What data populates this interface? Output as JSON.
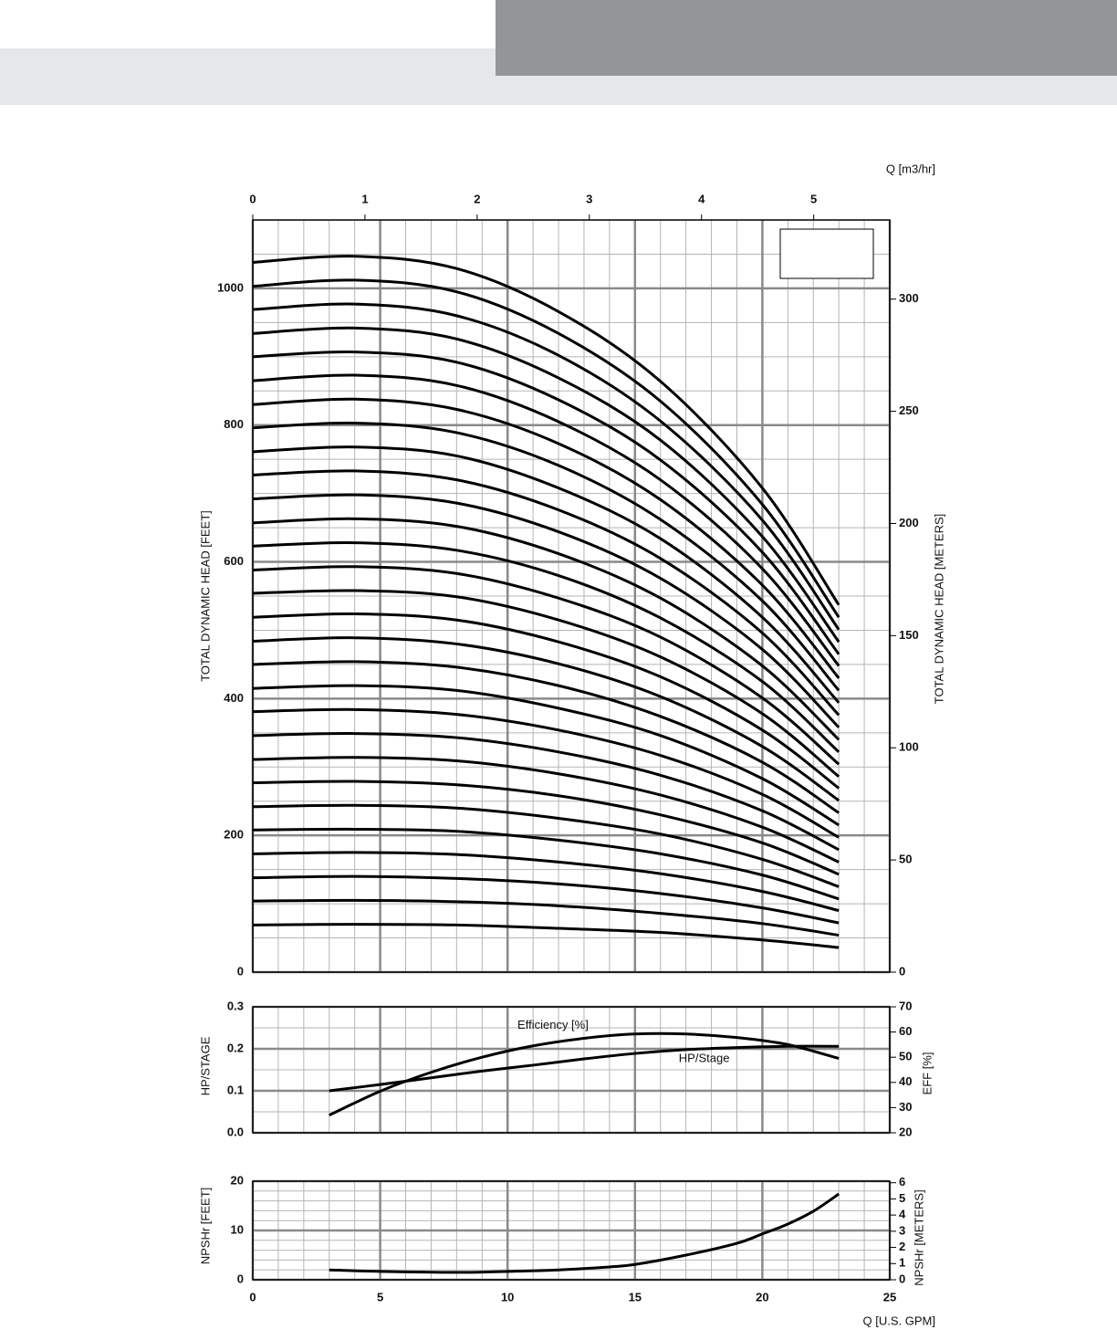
{
  "chart_data": [
    {
      "type": "line",
      "color": "#000000",
      "grid": true,
      "x2_title": "Q [m3/hr]",
      "ytitle": "TOTAL DYNAMIC HEAD [FEET]",
      "y2title": "TOTAL DYNAMIC HEAD [METERS]",
      "xlim": [
        0,
        25
      ],
      "xgrid": [
        0,
        5,
        10,
        15,
        20,
        25
      ],
      "xminor": [
        1,
        2,
        3,
        4,
        6,
        7,
        8,
        9,
        11,
        12,
        13,
        14,
        16,
        17,
        18,
        19,
        21,
        22,
        23,
        24
      ],
      "x2lim": [
        0,
        5.678
      ],
      "x2ticks": [
        0,
        1,
        2,
        3,
        4,
        5
      ],
      "ylim": [
        0,
        1100
      ],
      "yticks": [
        0,
        200,
        400,
        600,
        800,
        1000
      ],
      "yminor": [
        50,
        100,
        150,
        250,
        300,
        350,
        450,
        500,
        550,
        650,
        700,
        750,
        850,
        900,
        950,
        1050
      ],
      "y2lim": [
        0,
        335.28
      ],
      "y2ticks": [
        0,
        50,
        100,
        150,
        200,
        250,
        300
      ],
      "x": [
        0,
        4,
        8,
        12,
        16,
        20,
        23
      ],
      "series": [
        {
          "values": [
            69,
            70,
            69,
            64,
            58,
            47,
            36
          ]
        },
        {
          "values": [
            104,
            105,
            103,
            97,
            86,
            71,
            54
          ]
        },
        {
          "values": [
            138,
            140,
            137,
            129,
            115,
            94,
            72
          ]
        },
        {
          "values": [
            173,
            175,
            172,
            161,
            144,
            118,
            90
          ]
        },
        {
          "values": [
            208,
            209,
            206,
            193,
            173,
            142,
            107
          ]
        },
        {
          "values": [
            242,
            244,
            240,
            225,
            202,
            165,
            125
          ]
        },
        {
          "values": [
            277,
            279,
            274,
            258,
            230,
            189,
            143
          ]
        },
        {
          "values": [
            311,
            314,
            309,
            290,
            259,
            212,
            161
          ]
        },
        {
          "values": [
            346,
            349,
            343,
            322,
            288,
            236,
            179
          ]
        },
        {
          "values": [
            381,
            384,
            377,
            354,
            317,
            260,
            197
          ]
        },
        {
          "values": [
            415,
            419,
            412,
            386,
            346,
            283,
            215
          ]
        },
        {
          "values": [
            450,
            454,
            446,
            419,
            374,
            307,
            233
          ]
        },
        {
          "values": [
            484,
            489,
            480,
            451,
            403,
            330,
            251
          ]
        },
        {
          "values": [
            519,
            524,
            515,
            483,
            432,
            354,
            269
          ]
        },
        {
          "values": [
            554,
            558,
            549,
            515,
            461,
            378,
            286
          ]
        },
        {
          "values": [
            588,
            593,
            583,
            547,
            490,
            401,
            304
          ]
        },
        {
          "values": [
            623,
            628,
            617,
            580,
            518,
            425,
            322
          ]
        },
        {
          "values": [
            657,
            663,
            652,
            612,
            547,
            448,
            340
          ]
        },
        {
          "values": [
            692,
            698,
            686,
            644,
            576,
            472,
            358
          ]
        },
        {
          "values": [
            727,
            733,
            720,
            676,
            605,
            496,
            376
          ]
        },
        {
          "values": [
            761,
            768,
            755,
            708,
            634,
            519,
            394
          ]
        },
        {
          "values": [
            796,
            803,
            789,
            741,
            662,
            543,
            412
          ]
        },
        {
          "values": [
            830,
            838,
            823,
            773,
            691,
            566,
            430
          ]
        },
        {
          "values": [
            865,
            873,
            858,
            805,
            720,
            590,
            448
          ]
        },
        {
          "values": [
            900,
            907,
            892,
            837,
            749,
            614,
            465
          ]
        },
        {
          "values": [
            934,
            942,
            926,
            869,
            778,
            637,
            483
          ]
        },
        {
          "values": [
            969,
            977,
            960,
            902,
            806,
            661,
            501
          ]
        },
        {
          "values": [
            1003,
            1012,
            995,
            934,
            835,
            684,
            519
          ]
        },
        {
          "values": [
            1038,
            1047,
            1029,
            966,
            864,
            708,
            537
          ]
        }
      ]
    },
    {
      "type": "line",
      "color": "#000000",
      "grid": true,
      "ytitle": "HP/STAGE",
      "y2title": "EFF [%]",
      "xlim": [
        0,
        25
      ],
      "xgrid": [
        0,
        5,
        10,
        15,
        20,
        25
      ],
      "xminor": [
        1,
        2,
        3,
        4,
        6,
        7,
        8,
        9,
        11,
        12,
        13,
        14,
        16,
        17,
        18,
        19,
        21,
        22,
        23,
        24
      ],
      "ylim": [
        0,
        0.3
      ],
      "yticks": [
        {
          "value": 0,
          "label": "0.0"
        },
        0.1,
        0.2,
        0.3
      ],
      "yminor": [
        0.05,
        0.15,
        0.25
      ],
      "y2lim": [
        20,
        70
      ],
      "y2ticks": [
        20,
        30,
        40,
        50,
        60,
        70
      ],
      "x": [
        3,
        5,
        7,
        9,
        11,
        13,
        15,
        17,
        19,
        21,
        23
      ],
      "series": [
        {
          "name": "HP/Stage",
          "values": [
            0.1,
            0.115,
            0.131,
            0.147,
            0.161,
            0.176,
            0.189,
            0.198,
            0.203,
            0.206,
            0.206
          ]
        },
        {
          "name": "Efficiency [%]",
          "axis": "y2",
          "values": [
            27,
            36.5,
            44,
            50,
            54.5,
            57.5,
            59.2,
            59.2,
            57.8,
            55,
            49.5
          ]
        }
      ]
    },
    {
      "type": "line",
      "color": "#000000",
      "grid": true,
      "ytitle": "NPSHr [FEET]",
      "y2title": "NPSHr [METERS]",
      "xtitle": "Q [U.S. GPM]",
      "xlim": [
        0,
        25
      ],
      "xticks": [
        0,
        5,
        10,
        15,
        20,
        25
      ],
      "xminor": [
        1,
        2,
        3,
        4,
        6,
        7,
        8,
        9,
        11,
        12,
        13,
        14,
        16,
        17,
        18,
        19,
        21,
        22,
        23,
        24
      ],
      "ylim": [
        0,
        20
      ],
      "yticks": [
        0,
        10,
        20
      ],
      "yminor": [
        2,
        4,
        6,
        8,
        12,
        14,
        16,
        18
      ],
      "y2lim": [
        0,
        6.096
      ],
      "y2ticks": [
        0,
        1,
        2,
        3,
        4,
        5,
        6
      ],
      "x": [
        3,
        5,
        8,
        10,
        12,
        14,
        15,
        17,
        19,
        20,
        21,
        22,
        23
      ],
      "series": [
        {
          "values": [
            2,
            1.7,
            1.5,
            1.7,
            2,
            2.6,
            3.1,
            5,
            7.4,
            9.3,
            11.3,
            13.9,
            17.4
          ]
        }
      ]
    }
  ]
}
